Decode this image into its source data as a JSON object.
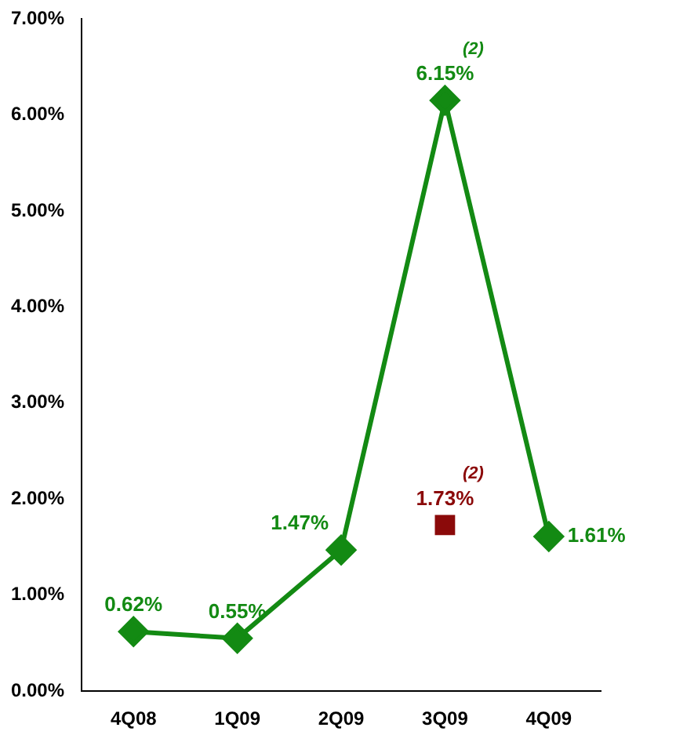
{
  "chart_data": {
    "type": "line",
    "categories": [
      "4Q08",
      "1Q09",
      "2Q09",
      "3Q09",
      "4Q09"
    ],
    "series": [
      {
        "type": "line",
        "color": "#138a13",
        "marker": "diamond",
        "values": [
          0.62,
          0.55,
          1.47,
          6.15,
          1.61
        ],
        "value_labels": [
          "0.62%",
          "0.55%",
          "1.47%",
          "6.15%",
          "1.61%"
        ]
      },
      {
        "type": "scatter",
        "color": "#8b0a0a",
        "marker": "square",
        "values": [
          null,
          null,
          null,
          1.73,
          null
        ],
        "value_labels": [
          null,
          null,
          null,
          "1.73%",
          null
        ]
      }
    ],
    "ylim": [
      0,
      7
    ],
    "yticks": [
      {
        "value": 0,
        "label": "0.00%"
      },
      {
        "value": 1,
        "label": "1.00%"
      },
      {
        "value": 2,
        "label": "2.00%"
      },
      {
        "value": 3,
        "label": "3.00%"
      },
      {
        "value": 4,
        "label": "4.00%"
      },
      {
        "value": 5,
        "label": "5.00%"
      },
      {
        "value": 6,
        "label": "6.00%"
      },
      {
        "value": 7,
        "label": "7.00%"
      }
    ],
    "annotations": [
      {
        "text": "(2)",
        "x": "3Q09",
        "y": 6.15
      },
      {
        "text": "(2)",
        "x": "3Q09",
        "y": 1.73
      }
    ],
    "grid": false,
    "legend": false
  }
}
